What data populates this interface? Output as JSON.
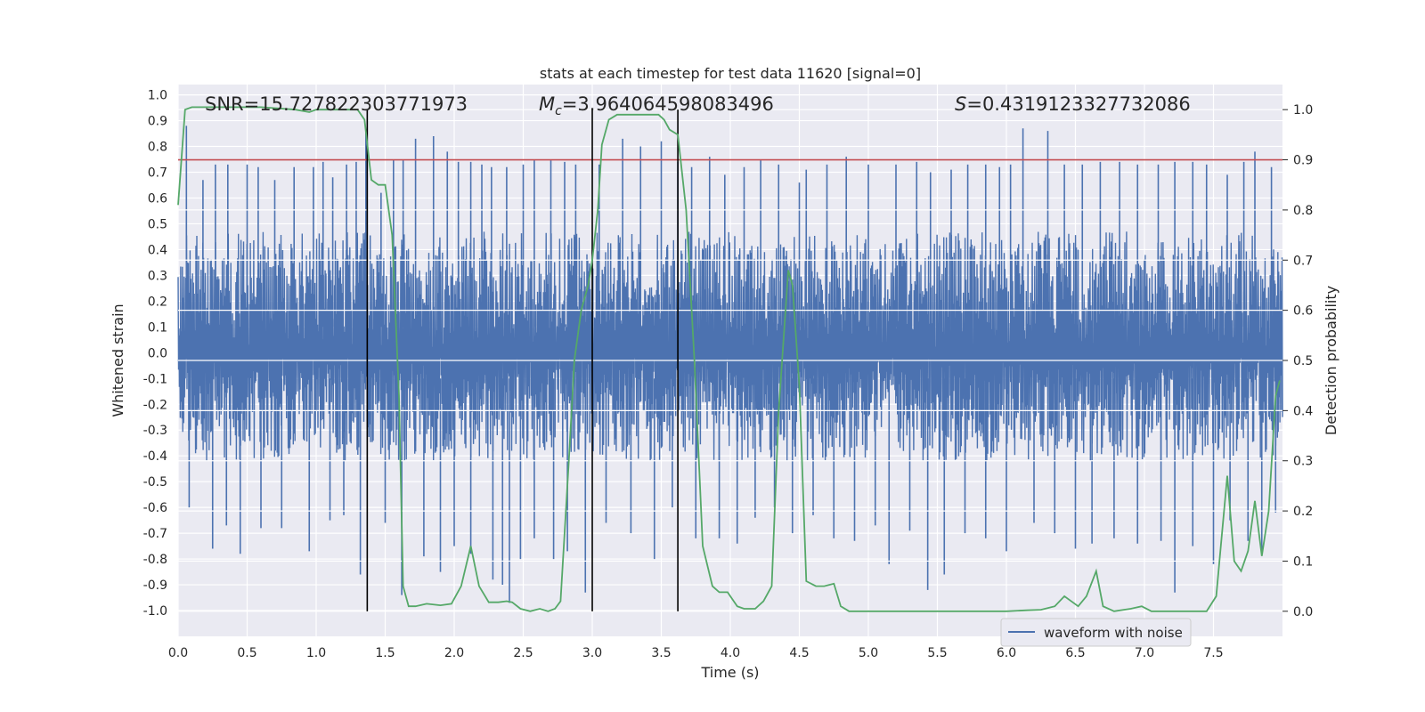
{
  "chart_data": {
    "type": "line",
    "title": "stats at each timestep for test data 11620 [signal=0]",
    "xlabel": "Time (s)",
    "ylabel_left": "Whitened strain",
    "ylabel_right": "Detection probability",
    "xlim": [
      0,
      8
    ],
    "ylim_left": [
      -1.1,
      1.04
    ],
    "ylim_right": [
      -0.05,
      1.05
    ],
    "x_ticks": [
      "0.0",
      "0.5",
      "1.0",
      "1.5",
      "2.0",
      "2.5",
      "3.0",
      "3.5",
      "4.0",
      "4.5",
      "5.0",
      "5.5",
      "6.0",
      "6.5",
      "7.0",
      "7.5"
    ],
    "x_tick_values": [
      0,
      0.5,
      1,
      1.5,
      2,
      2.5,
      3,
      3.5,
      4,
      4.5,
      5,
      5.5,
      6,
      6.5,
      7,
      7.5
    ],
    "y_left_ticks": [
      "1.0",
      "0.9",
      "0.8",
      "0.7",
      "0.6",
      "0.5",
      "0.4",
      "0.3",
      "0.2",
      "0.1",
      "0.0",
      "-0.1",
      "-0.2",
      "-0.3",
      "-0.4",
      "-0.5",
      "-0.6",
      "-0.7",
      "-0.8",
      "-0.9",
      "-1.0"
    ],
    "y_left_tick_values": [
      1.0,
      0.9,
      0.8,
      0.7,
      0.6,
      0.5,
      0.4,
      0.3,
      0.2,
      0.1,
      0.0,
      -0.1,
      -0.2,
      -0.3,
      -0.4,
      -0.5,
      -0.6,
      -0.7,
      -0.8,
      -0.9,
      -1.0
    ],
    "y_right_ticks": [
      "1.0",
      "0.9",
      "0.8",
      "0.7",
      "0.6",
      "0.5",
      "0.4",
      "0.3",
      "0.2",
      "0.1",
      "0.0"
    ],
    "y_right_tick_values": [
      1.0,
      0.9,
      0.8,
      0.7,
      0.6,
      0.5,
      0.4,
      0.3,
      0.2,
      0.1,
      0.0
    ],
    "annotations": {
      "snr": "SNR=15.727822303771973",
      "mc_symbol": "M",
      "mc_sub": "c",
      "mc_value": "=3.964064598083496",
      "s_symbol": "S",
      "s_value": "=0.4319123327732086"
    },
    "threshold": {
      "value": 0.9,
      "axis": "right",
      "color": "#c44e52"
    },
    "vertical_lines": [
      1.37,
      3.0,
      3.62
    ],
    "series": [
      {
        "name": "waveform with noise",
        "axis": "left",
        "color": "#4c72b0",
        "style": "dense noise trace",
        "typical_range": [
          -0.45,
          0.55
        ],
        "peaks": [
          [
            0.06,
            0.88
          ],
          [
            0.18,
            0.67
          ],
          [
            0.27,
            0.73
          ],
          [
            0.36,
            0.73
          ],
          [
            0.5,
            0.73
          ],
          [
            0.58,
            0.72
          ],
          [
            0.7,
            0.67
          ],
          [
            0.84,
            0.72
          ],
          [
            0.98,
            0.72
          ],
          [
            1.05,
            0.74
          ],
          [
            1.12,
            0.68
          ],
          [
            1.22,
            0.73
          ],
          [
            1.29,
            0.74
          ],
          [
            1.36,
            0.86
          ],
          [
            1.47,
            0.62
          ],
          [
            1.56,
            0.75
          ],
          [
            1.63,
            0.75
          ],
          [
            1.72,
            0.83
          ],
          [
            1.85,
            0.84
          ],
          [
            1.95,
            0.78
          ],
          [
            2.03,
            0.74
          ],
          [
            2.12,
            0.74
          ],
          [
            2.2,
            0.73
          ],
          [
            2.27,
            0.72
          ],
          [
            2.38,
            0.72
          ],
          [
            2.5,
            0.73
          ],
          [
            2.58,
            0.75
          ],
          [
            2.7,
            0.75
          ],
          [
            2.8,
            0.74
          ],
          [
            2.88,
            0.73
          ],
          [
            3.05,
            0.73
          ],
          [
            3.22,
            0.83
          ],
          [
            3.35,
            0.8
          ],
          [
            3.5,
            0.82
          ],
          [
            3.62,
            0.74
          ],
          [
            3.72,
            0.72
          ],
          [
            3.85,
            0.76
          ],
          [
            3.96,
            0.69
          ],
          [
            4.1,
            0.72
          ],
          [
            4.22,
            0.75
          ],
          [
            4.35,
            0.73
          ],
          [
            4.5,
            0.66
          ],
          [
            4.55,
            0.71
          ],
          [
            4.7,
            0.73
          ],
          [
            4.84,
            0.76
          ],
          [
            5.0,
            0.73
          ],
          [
            5.2,
            0.73
          ],
          [
            5.35,
            0.74
          ],
          [
            5.45,
            0.7
          ],
          [
            5.6,
            0.71
          ],
          [
            5.72,
            0.73
          ],
          [
            5.85,
            0.73
          ],
          [
            5.95,
            0.72
          ],
          [
            6.03,
            0.73
          ],
          [
            6.12,
            0.87
          ],
          [
            6.3,
            0.86
          ],
          [
            6.42,
            0.73
          ],
          [
            6.55,
            0.73
          ],
          [
            6.68,
            0.74
          ],
          [
            6.82,
            0.74
          ],
          [
            6.95,
            0.73
          ],
          [
            7.1,
            0.73
          ],
          [
            7.22,
            0.74
          ],
          [
            7.35,
            0.74
          ],
          [
            7.45,
            0.73
          ],
          [
            7.6,
            0.69
          ],
          [
            7.72,
            0.74
          ],
          [
            7.8,
            0.78
          ],
          [
            7.92,
            0.72
          ]
        ],
        "troughs": [
          [
            0.08,
            -0.6
          ],
          [
            0.25,
            -0.76
          ],
          [
            0.35,
            -0.67
          ],
          [
            0.45,
            -0.78
          ],
          [
            0.6,
            -0.68
          ],
          [
            0.75,
            -0.68
          ],
          [
            0.95,
            -0.77
          ],
          [
            1.1,
            -0.65
          ],
          [
            1.2,
            -0.63
          ],
          [
            1.32,
            -0.86
          ],
          [
            1.5,
            -0.66
          ],
          [
            1.62,
            -0.94
          ],
          [
            1.78,
            -0.79
          ],
          [
            1.9,
            -0.85
          ],
          [
            2.0,
            -0.75
          ],
          [
            2.12,
            -0.78
          ],
          [
            2.28,
            -0.88
          ],
          [
            2.35,
            -0.9
          ],
          [
            2.4,
            -0.97
          ],
          [
            2.48,
            -0.8
          ],
          [
            2.58,
            -0.72
          ],
          [
            2.72,
            -0.8
          ],
          [
            2.82,
            -0.77
          ],
          [
            2.95,
            -0.93
          ],
          [
            3.1,
            -0.66
          ],
          [
            3.28,
            -0.7
          ],
          [
            3.45,
            -0.8
          ],
          [
            3.58,
            -0.6
          ],
          [
            3.75,
            -0.72
          ],
          [
            3.92,
            -0.72
          ],
          [
            4.05,
            -0.74
          ],
          [
            4.18,
            -0.64
          ],
          [
            4.32,
            -0.6
          ],
          [
            4.45,
            -0.7
          ],
          [
            4.6,
            -0.63
          ],
          [
            4.75,
            -0.72
          ],
          [
            4.9,
            -0.73
          ],
          [
            5.05,
            -0.67
          ],
          [
            5.15,
            -0.82
          ],
          [
            5.3,
            -0.69
          ],
          [
            5.43,
            -0.92
          ],
          [
            5.55,
            -0.86
          ],
          [
            5.7,
            -0.7
          ],
          [
            5.85,
            -0.72
          ],
          [
            6.0,
            -0.77
          ],
          [
            6.2,
            -0.66
          ],
          [
            6.35,
            -0.7
          ],
          [
            6.5,
            -0.76
          ],
          [
            6.62,
            -0.74
          ],
          [
            6.78,
            -0.72
          ],
          [
            6.95,
            -0.74
          ],
          [
            7.12,
            -0.73
          ],
          [
            7.22,
            -0.93
          ],
          [
            7.35,
            -0.75
          ],
          [
            7.5,
            -0.82
          ],
          [
            7.62,
            -0.65
          ],
          [
            7.75,
            -0.73
          ],
          [
            7.85,
            -0.78
          ],
          [
            7.95,
            -0.62
          ]
        ]
      },
      {
        "name": "detection probability",
        "axis": "right",
        "color": "#55a868",
        "x": [
          0,
          0.05,
          0.1,
          0.3,
          0.6,
          0.85,
          0.95,
          1.0,
          1.1,
          1.25,
          1.3,
          1.35,
          1.4,
          1.45,
          1.5,
          1.55,
          1.6,
          1.63,
          1.67,
          1.72,
          1.8,
          1.9,
          1.98,
          2.05,
          2.12,
          2.18,
          2.25,
          2.32,
          2.38,
          2.42,
          2.48,
          2.55,
          2.62,
          2.68,
          2.73,
          2.77,
          2.83,
          2.87,
          2.92,
          2.97,
          3.0,
          3.04,
          3.07,
          3.12,
          3.18,
          3.25,
          3.35,
          3.42,
          3.48,
          3.52,
          3.56,
          3.62,
          3.68,
          3.74,
          3.8,
          3.87,
          3.92,
          3.98,
          4.05,
          4.1,
          4.18,
          4.24,
          4.3,
          4.35,
          4.42,
          4.45,
          4.5,
          4.55,
          4.62,
          4.68,
          4.75,
          4.8,
          4.86,
          4.95,
          5.1,
          5.25,
          5.35,
          5.45,
          5.6,
          5.8,
          6.0,
          6.15,
          6.25,
          6.35,
          6.42,
          6.52,
          6.58,
          6.65,
          6.7,
          6.78,
          6.9,
          6.98,
          7.05,
          7.15,
          7.25,
          7.35,
          7.45,
          7.52,
          7.6,
          7.65,
          7.7,
          7.75,
          7.8,
          7.85,
          7.9,
          7.95,
          7.98
        ],
        "values": [
          0.81,
          1.0,
          1.005,
          1.005,
          1.005,
          1.0,
          0.995,
          1.0,
          1.0,
          1.0,
          1.0,
          0.98,
          0.86,
          0.85,
          0.85,
          0.75,
          0.43,
          0.05,
          0.01,
          0.01,
          0.015,
          0.012,
          0.015,
          0.05,
          0.13,
          0.05,
          0.018,
          0.018,
          0.02,
          0.018,
          0.005,
          0.0,
          0.005,
          0.0,
          0.005,
          0.02,
          0.3,
          0.5,
          0.6,
          0.65,
          0.7,
          0.8,
          0.93,
          0.98,
          0.99,
          0.99,
          0.99,
          0.99,
          0.99,
          0.98,
          0.96,
          0.95,
          0.8,
          0.5,
          0.13,
          0.05,
          0.038,
          0.038,
          0.01,
          0.005,
          0.005,
          0.02,
          0.05,
          0.4,
          0.68,
          0.65,
          0.45,
          0.06,
          0.05,
          0.05,
          0.055,
          0.01,
          0.0,
          0.0,
          0.0,
          0.0,
          0.0,
          0.0,
          0.0,
          0.0,
          0.0,
          0.002,
          0.003,
          0.01,
          0.03,
          0.01,
          0.03,
          0.08,
          0.01,
          0.0,
          0.005,
          0.01,
          0.0,
          0.0,
          0.0,
          0.0,
          0.0,
          0.03,
          0.27,
          0.1,
          0.08,
          0.12,
          0.22,
          0.11,
          0.2,
          0.43,
          0.46
        ]
      }
    ],
    "legend": {
      "entries": [
        "waveform with noise"
      ],
      "location": "lower-right"
    }
  }
}
